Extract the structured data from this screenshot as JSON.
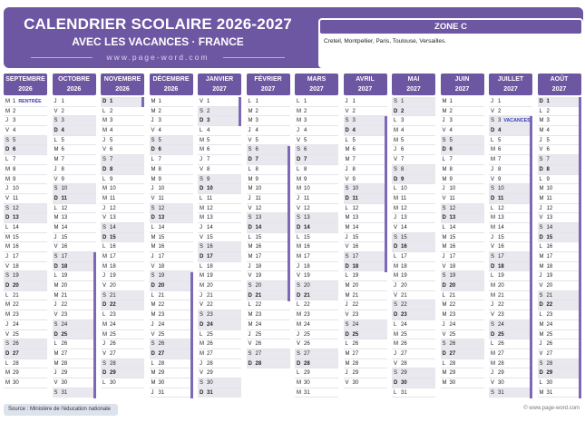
{
  "header": {
    "title": "CALENDRIER SCOLAIRE 2026-2027",
    "subtitle": "AVEC LES VACANCES · FRANCE",
    "website": "www.page-word.com"
  },
  "zone": {
    "title": "ZONE C",
    "cities": "Creteil, Montpellier, Paris, Toulouse, Versailles."
  },
  "footer": {
    "source": "Source : Ministère de l'éducation nationale",
    "credit": "© www.page-word.com"
  },
  "accent_color": "#6d56a2",
  "vacation_bar_color": "#7c68b4",
  "weekend_color": "#e8e8ee",
  "day_letters": [
    "D",
    "L",
    "M",
    "M",
    "J",
    "V",
    "S"
  ],
  "months": [
    {
      "name": "SEPTEMBRE",
      "year": "2026",
      "start_weekday": 2,
      "days": 30,
      "vacations": [],
      "events": {
        "1": "RENTRÉE"
      }
    },
    {
      "name": "OCTOBRE",
      "year": "2026",
      "start_weekday": 4,
      "days": 31,
      "vacations": [
        [
          17,
          31
        ]
      ],
      "events": {}
    },
    {
      "name": "NOVEMBRE",
      "year": "2026",
      "start_weekday": 0,
      "days": 30,
      "vacations": [
        [
          1,
          1
        ]
      ],
      "events": {}
    },
    {
      "name": "DÉCEMBRE",
      "year": "2026",
      "start_weekday": 2,
      "days": 31,
      "vacations": [
        [
          19,
          31
        ]
      ],
      "events": {}
    },
    {
      "name": "JANVIER",
      "year": "2027",
      "start_weekday": 5,
      "days": 31,
      "vacations": [
        [
          1,
          3
        ]
      ],
      "events": {}
    },
    {
      "name": "FÉVRIER",
      "year": "2027",
      "start_weekday": 1,
      "days": 28,
      "vacations": [
        [
          6,
          21
        ]
      ],
      "events": {}
    },
    {
      "name": "MARS",
      "year": "2027",
      "start_weekday": 1,
      "days": 31,
      "vacations": [],
      "events": {}
    },
    {
      "name": "AVRIL",
      "year": "2027",
      "start_weekday": 4,
      "days": 30,
      "vacations": [
        [
          3,
          18
        ]
      ],
      "events": {}
    },
    {
      "name": "MAI",
      "year": "2027",
      "start_weekday": 6,
      "days": 31,
      "vacations": [],
      "events": {}
    },
    {
      "name": "JUIN",
      "year": "2027",
      "start_weekday": 2,
      "days": 30,
      "vacations": [],
      "events": {}
    },
    {
      "name": "JUILLET",
      "year": "2027",
      "start_weekday": 4,
      "days": 31,
      "vacations": [
        [
          3,
          31
        ]
      ],
      "events": {
        "3": "VACANCES"
      }
    },
    {
      "name": "AOÛT",
      "year": "2027",
      "start_weekday": 0,
      "days": 31,
      "vacations": [
        [
          1,
          31
        ]
      ],
      "events": {}
    }
  ]
}
